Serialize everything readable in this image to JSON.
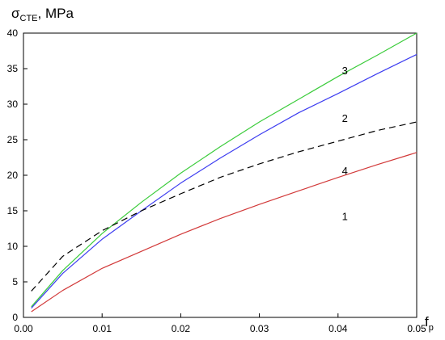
{
  "chart_data": {
    "type": "line",
    "ylabel": {
      "main": "σ",
      "sub": "CTE",
      "suffix": ", MPa"
    },
    "xlabel": {
      "main": "f",
      "sub": "p"
    },
    "xlim": [
      0,
      0.05
    ],
    "ylim": [
      0,
      40
    ],
    "x_ticks": [
      "0.00",
      "0.01",
      "0.02",
      "0.03",
      "0.04",
      "0.05"
    ],
    "x_tick_values": [
      0,
      0.01,
      0.02,
      0.03,
      0.04,
      0.05
    ],
    "y_ticks": [
      "0",
      "5",
      "10",
      "15",
      "20",
      "25",
      "30",
      "35",
      "40"
    ],
    "y_tick_values": [
      0,
      5,
      10,
      15,
      20,
      25,
      30,
      35,
      40
    ],
    "grid": false,
    "series": [
      {
        "label": "1",
        "color": "#d23a3a",
        "dash": "",
        "x": [
          0.001,
          0.005,
          0.01,
          0.015,
          0.02,
          0.025,
          0.03,
          0.035,
          0.04,
          0.045,
          0.05
        ],
        "y": [
          0.8,
          3.8,
          6.9,
          9.3,
          11.7,
          13.9,
          15.9,
          17.8,
          19.7,
          21.5,
          23.2
        ]
      },
      {
        "label": "2",
        "color": "#3d3df0",
        "dash": "",
        "x": [
          0.001,
          0.005,
          0.01,
          0.015,
          0.02,
          0.025,
          0.03,
          0.035,
          0.04,
          0.045,
          0.05
        ],
        "y": [
          1.3,
          6.2,
          11.0,
          15.0,
          18.9,
          22.4,
          25.7,
          28.8,
          31.5,
          34.3,
          37.0
        ]
      },
      {
        "label": "3",
        "color": "#3ccc3c",
        "dash": "",
        "x": [
          0.001,
          0.005,
          0.01,
          0.015,
          0.02,
          0.025,
          0.03,
          0.035,
          0.04,
          0.045,
          0.05
        ],
        "y": [
          1.5,
          6.6,
          11.8,
          16.2,
          20.3,
          24.0,
          27.5,
          30.7,
          33.9,
          36.9,
          40.0
        ]
      },
      {
        "label": "4",
        "color": "#000000",
        "dash": "8,5",
        "x": [
          0.001,
          0.005,
          0.01,
          0.015,
          0.02,
          0.025,
          0.03,
          0.035,
          0.04,
          0.045,
          0.05
        ],
        "y": [
          3.7,
          8.6,
          12.2,
          15.0,
          17.4,
          19.7,
          21.6,
          23.3,
          24.8,
          26.3,
          27.5
        ]
      }
    ],
    "annotations": [
      {
        "text": "3",
        "x": 0.0405,
        "y": 34.2
      },
      {
        "text": "2",
        "x": 0.0405,
        "y": 27.5
      },
      {
        "text": "4",
        "x": 0.0405,
        "y": 20.1
      },
      {
        "text": "1",
        "x": 0.0405,
        "y": 13.7
      }
    ]
  }
}
